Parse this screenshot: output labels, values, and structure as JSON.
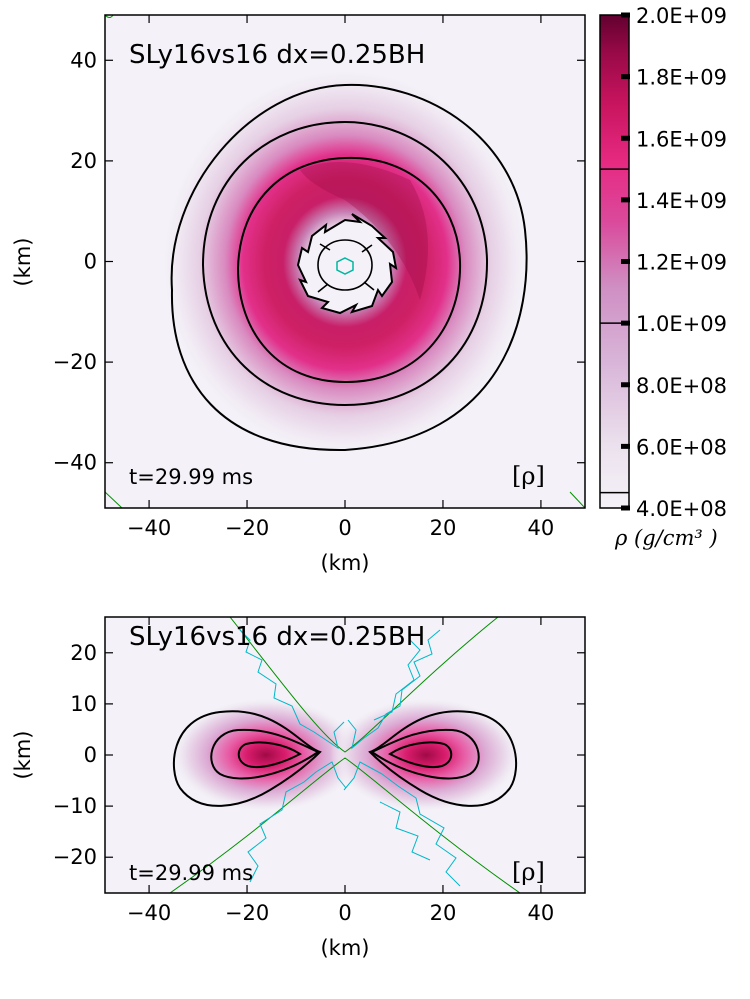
{
  "chart_data": [
    {
      "type": "heatmap",
      "view": "equatorial (x-y) plane",
      "title": "SLy16vs16 dx=0.25BH",
      "time_label": "t=29.99 ms",
      "variable_label": "[ρ]",
      "xlabel": "(km)",
      "ylabel": "(km)",
      "xlim": [
        -49,
        49
      ],
      "ylim": [
        -49,
        49
      ],
      "xticks": [
        -40,
        -20,
        0,
        20,
        40
      ],
      "yticks": [
        -40,
        -20,
        0,
        20,
        40
      ],
      "xtick_labels": [
        "−40",
        "−20",
        "0",
        "20",
        "40"
      ],
      "ytick_labels": [
        "−40",
        "−20",
        "0",
        "20",
        "40"
      ],
      "density_field": {
        "peak_radius_km": 15,
        "peak_rho": 1900000000.0,
        "inner_hole_radius_km": 8
      },
      "contours": [
        {
          "level": 450000000.0,
          "color": "#000000",
          "radius_km": 35
        },
        {
          "level": 1000000000.0,
          "color": "#000000",
          "radius_km": 28
        },
        {
          "level": 1500000000.0,
          "color": "#000000",
          "radius_km": 22
        },
        {
          "level": 1000000000.0,
          "color": "#000000",
          "radius_km": 9
        },
        {
          "level": 450000000.0,
          "color": "#00aaaa",
          "radius_km": 1.5
        }
      ]
    },
    {
      "type": "heatmap",
      "view": "meridional (x-z) plane",
      "title": "SLy16vs16 dx=0.25BH",
      "time_label": "t=29.99 ms",
      "variable_label": "[ρ]",
      "xlabel": "(km)",
      "ylabel": "(km)",
      "xlim": [
        -49,
        49
      ],
      "ylim": [
        -27,
        27
      ],
      "xticks": [
        -40,
        -20,
        0,
        20,
        40
      ],
      "yticks": [
        -20,
        -10,
        0,
        10,
        20
      ],
      "xtick_labels": [
        "−40",
        "−20",
        "0",
        "20",
        "40"
      ],
      "ytick_labels": [
        "−20",
        "−10",
        "0",
        "10",
        "20"
      ],
      "density_field": {
        "torus_center_x_km": [
          -16,
          16
        ],
        "peak_rho": 1900000000.0
      },
      "contours": [
        {
          "level": 450000000.0,
          "color": "#000000"
        },
        {
          "level": 1000000000.0,
          "color": "#000000"
        },
        {
          "level": 1500000000.0,
          "color": "#000000"
        }
      ]
    }
  ],
  "colorbar": {
    "min": 400000000.0,
    "max": 2000000000.0,
    "ticks": [
      400000000.0,
      600000000.0,
      800000000.0,
      1000000000.0,
      1200000000.0,
      1400000000.0,
      1600000000.0,
      1800000000.0,
      2000000000.0
    ],
    "tick_labels": [
      "4.0E+08",
      "6.0E+08",
      "8.0E+08",
      "1.0E+09",
      "1.2E+09",
      "1.4E+09",
      "1.6E+09",
      "1.8E+09",
      "2.0E+09"
    ],
    "contour_levels": [
      450000000.0,
      1000000000.0,
      1500000000.0
    ],
    "unit_label": "ρ (g/cm³ )"
  },
  "colors": {
    "low": "#f4f2f8",
    "mid_low": "#d8b4d8",
    "mid": "#cc5c9e",
    "high": "#e0267a",
    "max": "#6a0030",
    "jet_contour_green": "#009000",
    "jet_contour_cyan": "#00b8c8"
  }
}
